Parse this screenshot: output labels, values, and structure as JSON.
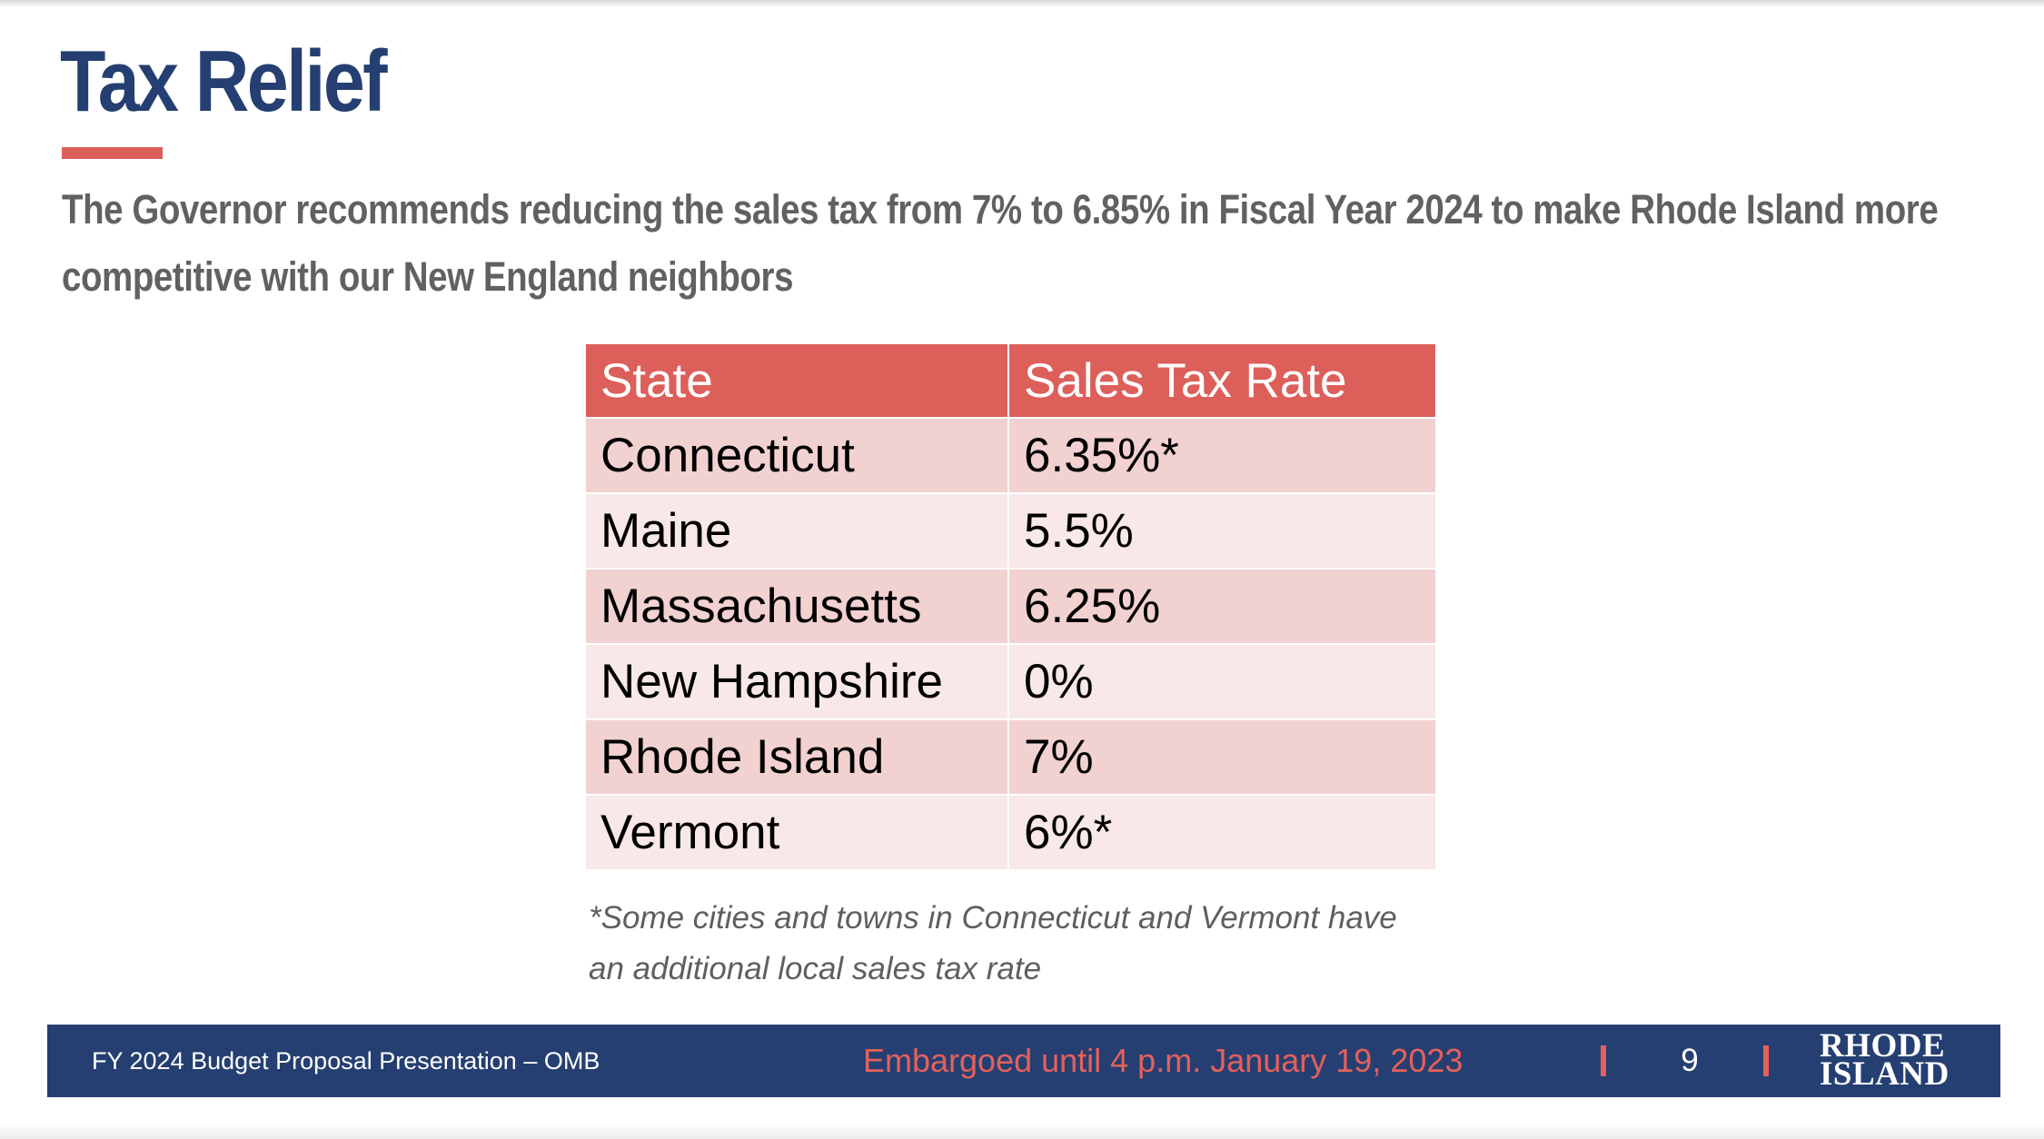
{
  "title": "Tax Relief",
  "subtitle": "The Governor recommends reducing the sales tax from 7% to 6.85% in Fiscal Year 2024 to make Rhode Island more competitive with our New England neighbors",
  "table": {
    "headers": [
      "State",
      "Sales Tax Rate"
    ],
    "rows": [
      {
        "state": "Connecticut",
        "rate": "6.35%*"
      },
      {
        "state": "Maine",
        "rate": "5.5%"
      },
      {
        "state": "Massachusetts",
        "rate": "6.25%"
      },
      {
        "state": "New Hampshire",
        "rate": "0%"
      },
      {
        "state": "Rhode Island",
        "rate": "7%"
      },
      {
        "state": "Vermont",
        "rate": "6%*"
      }
    ]
  },
  "footnote": "*Some cities and towns in Connecticut and Vermont have an additional local sales tax rate",
  "footer": {
    "left_text": "FY 2024 Budget Proposal Presentation – OMB",
    "embargo_text": "Embargoed until 4 p.m. January 19, 2023",
    "page_number": "9",
    "logo_line1": "RHODE",
    "logo_line2": "ISLAND"
  },
  "colors": {
    "title_blue": "#253f72",
    "accent_red": "#dc5f5a",
    "row_odd": "#f2d1d1",
    "row_even": "#f8e8e8",
    "footer_bg": "#253f72"
  }
}
